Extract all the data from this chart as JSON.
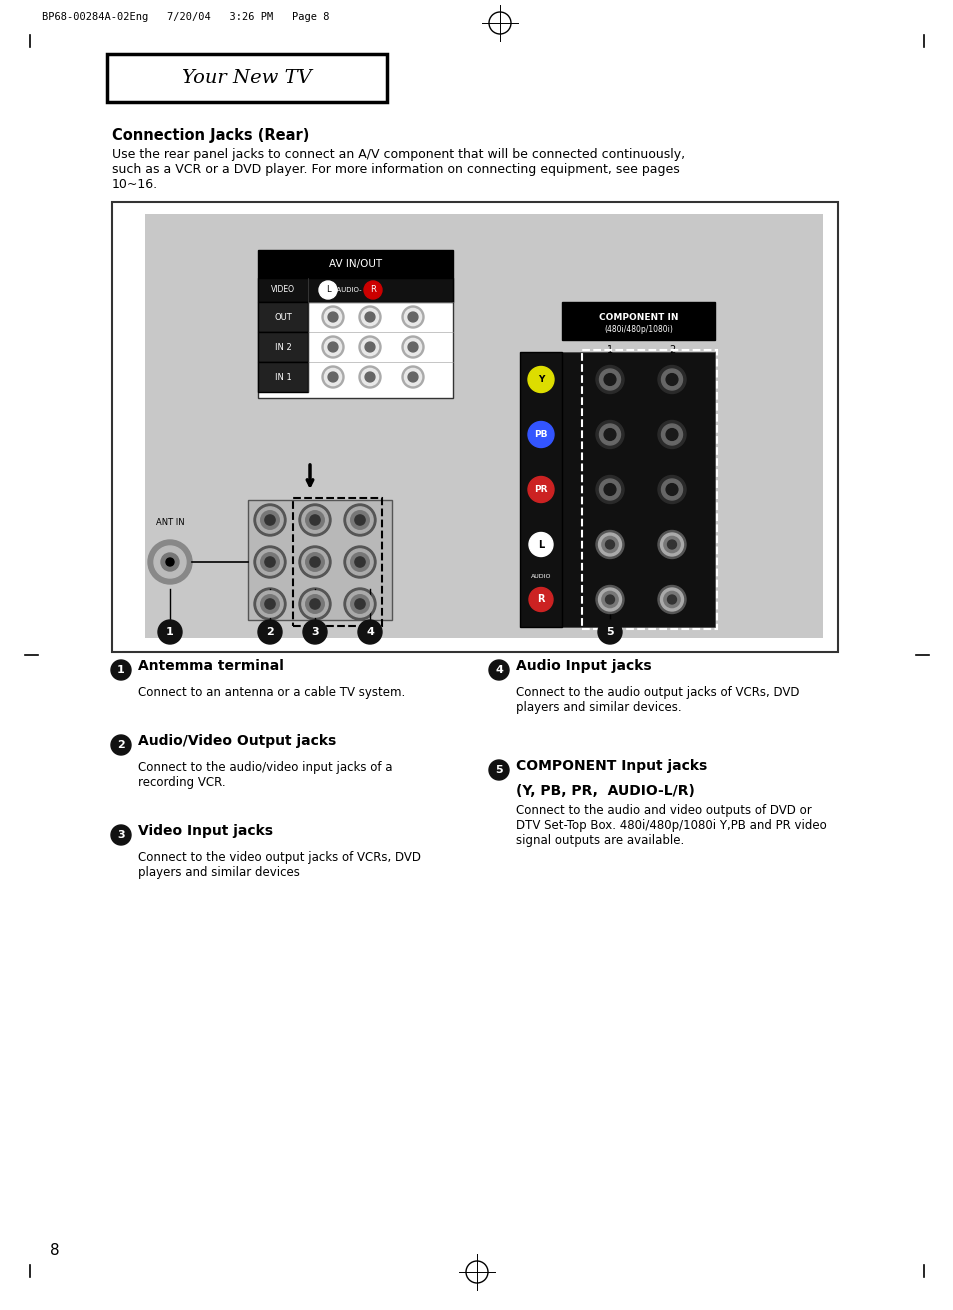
{
  "page_header": "BP68-00284A-02Eng   7/20/04   3:26 PM   Page 8",
  "section_title": "Your New TV",
  "heading": "Connection Jacks (Rear)",
  "intro_line1": "Use the rear panel jacks to connect an A/V component that will be connected continuously,",
  "intro_line2": "such as a VCR or a DVD player. For more information on connecting equipment, see pages",
  "intro_line3": "10~16.",
  "item1_title": "Antemma terminal",
  "item1_desc1": "Connect to an antenna or a cable TV system.",
  "item2_title": "Audio/Video Output jacks",
  "item2_desc1": "Connect to the audio/video input jacks of a",
  "item2_desc2": "recording VCR.",
  "item3_title": "Video Input jacks",
  "item3_desc1": "Connect to the video output jacks of VCRs, DVD",
  "item3_desc2": "players and similar devices",
  "item4_title": "Audio Input jacks",
  "item4_desc1": "Connect to the audio output jacks of VCRs, DVD",
  "item4_desc2": "players and similar devices.",
  "item5_title1": "COMPONENT Input jacks",
  "item5_title2": "(Y, PB, PR,  AUDIO-L/R)",
  "item5_desc1": "Connect to the audio and video outputs of DVD or",
  "item5_desc2": "DTV Set-Top Box. 480i/480p/1080i Y,PB and PR video",
  "item5_desc3": "signal outputs are available.",
  "page_num": "8",
  "bg_color": "#ffffff",
  "diagram_bg": "#c8c8c8",
  "av_panel_bg": "#ffffff",
  "av_header_bg": "#000000",
  "comp_panel_bg": "#1a1a1a",
  "comp_header_bg": "#000000"
}
